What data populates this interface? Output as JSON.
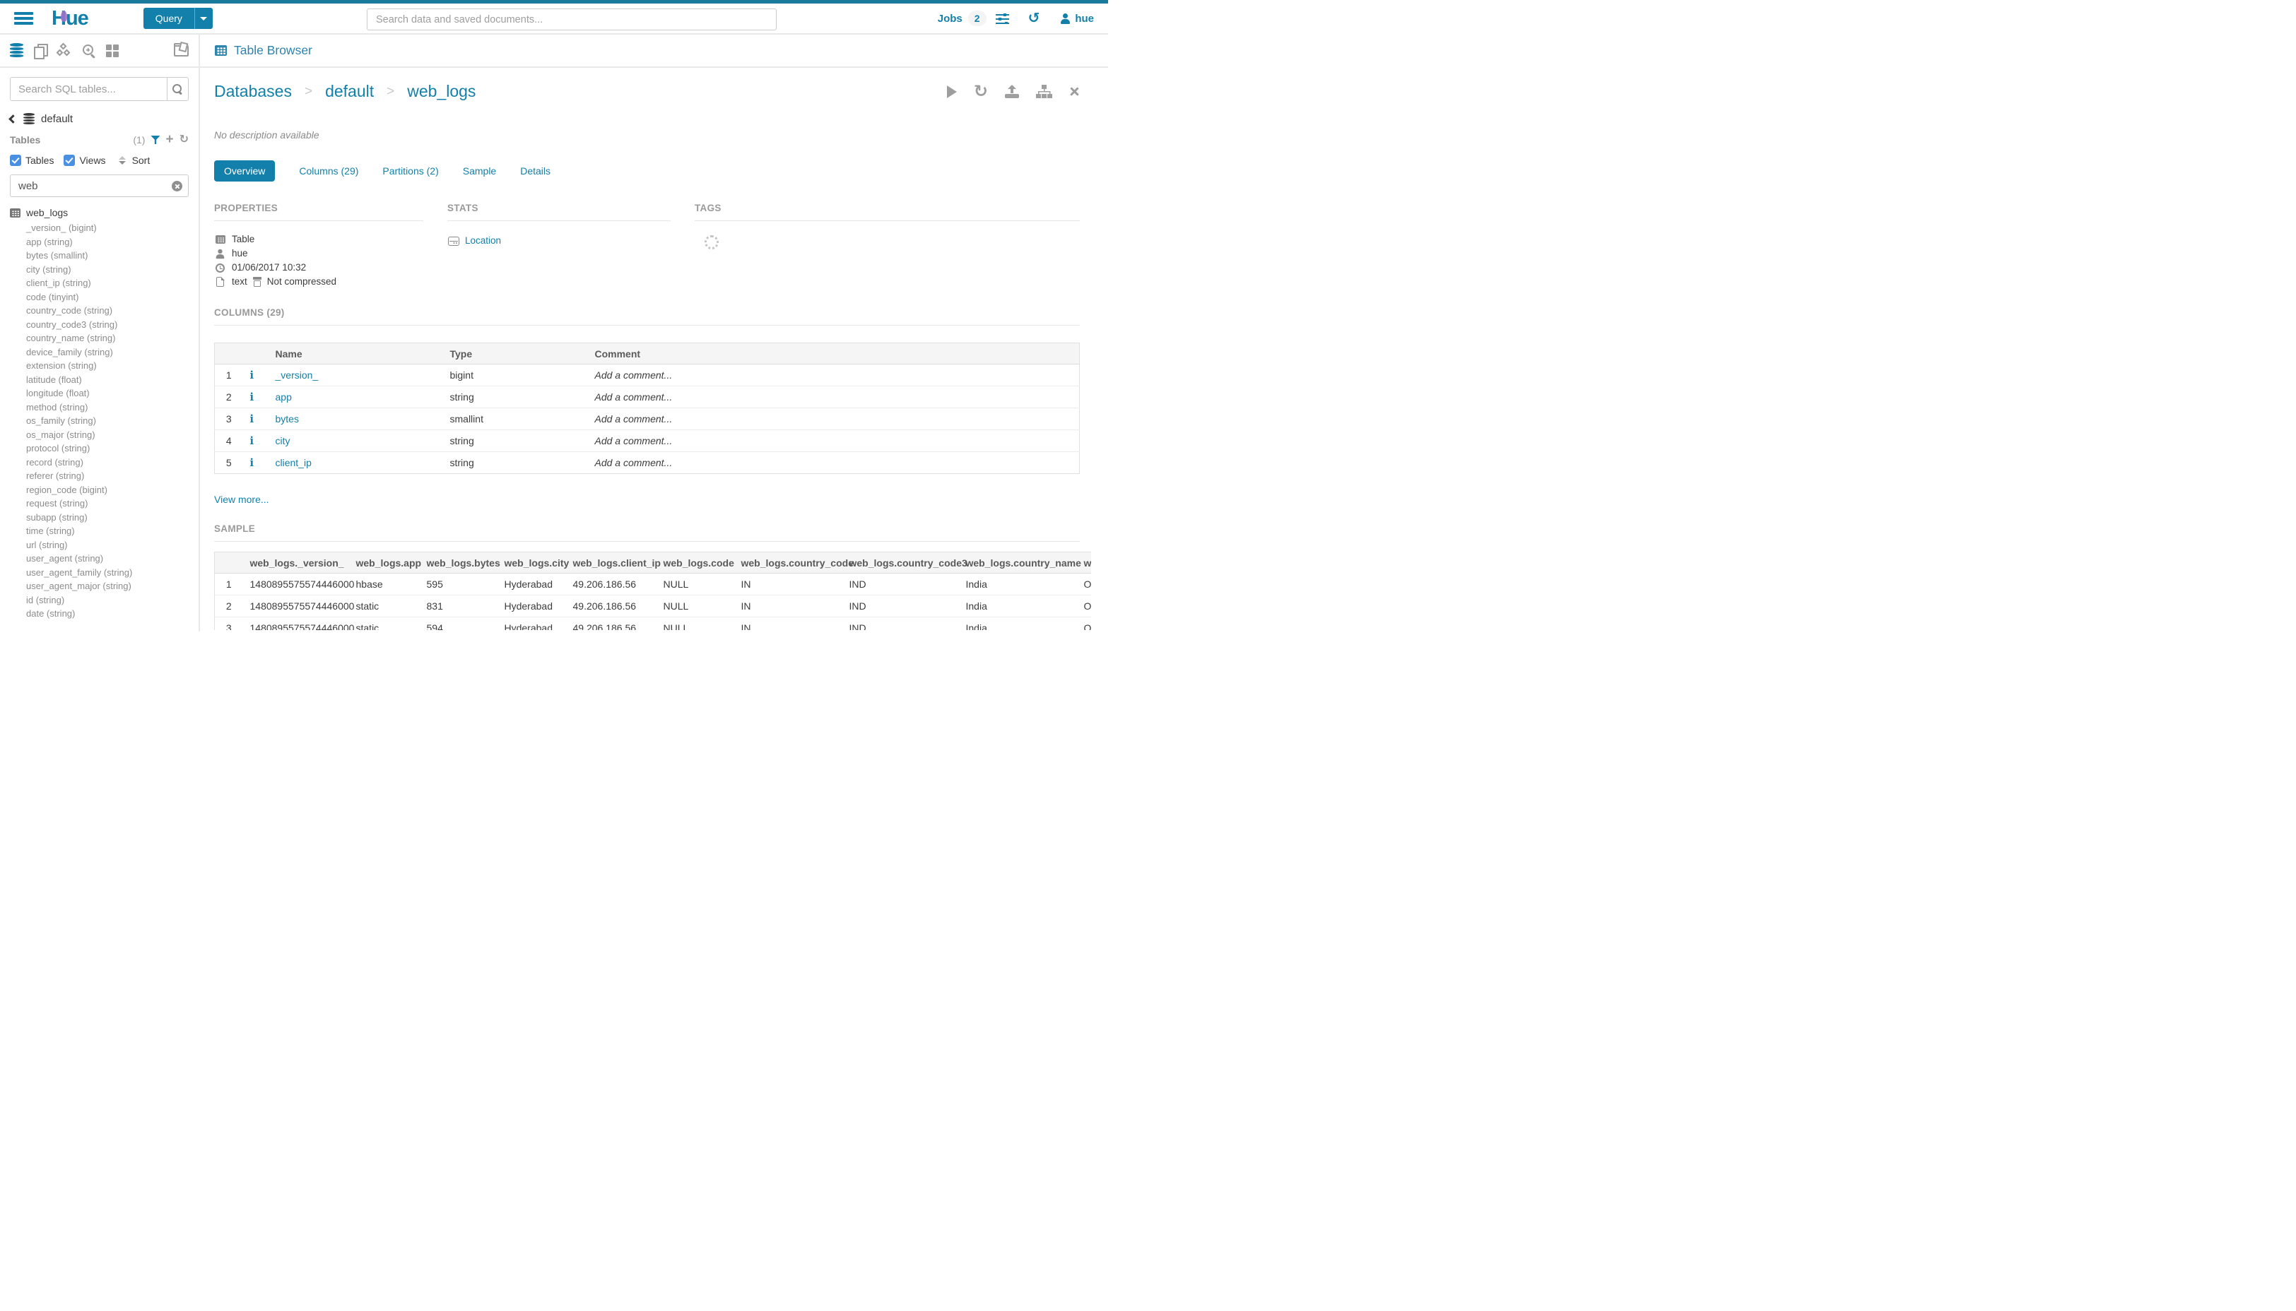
{
  "navbar": {
    "query_label": "Query",
    "search_placeholder": "Search data and saved documents...",
    "jobs_label": "Jobs",
    "jobs_count": "2",
    "user_label": "hue",
    "logo_text": "Hue",
    "brand_color": "#1280aa"
  },
  "sidebar": {
    "search_placeholder": "Search SQL tables...",
    "database_name": "default",
    "tables_label": "Tables",
    "tables_count": "(1)",
    "checkbox_tables_label": "Tables",
    "checkbox_views_label": "Views",
    "sort_label": "Sort",
    "filter_value": "web",
    "table_name": "web_logs",
    "columns": [
      "_version_ (bigint)",
      "app (string)",
      "bytes (smallint)",
      "city (string)",
      "client_ip (string)",
      "code (tinyint)",
      "country_code (string)",
      "country_code3 (string)",
      "country_name (string)",
      "device_family (string)",
      "extension (string)",
      "latitude (float)",
      "longitude (float)",
      "method (string)",
      "os_family (string)",
      "os_major (string)",
      "protocol (string)",
      "record (string)",
      "referer (string)",
      "region_code (bigint)",
      "request (string)",
      "subapp (string)",
      "time (string)",
      "url (string)",
      "user_agent (string)",
      "user_agent_family (string)",
      "user_agent_major (string)",
      "id (string)",
      "date (string)"
    ]
  },
  "main": {
    "app_title": "Table Browser",
    "breadcrumb": {
      "root": "Databases",
      "database": "default",
      "table": "web_logs",
      "separator": ">"
    },
    "description": "No description available",
    "tabs": [
      {
        "label": "Overview"
      },
      {
        "label": "Columns (29)"
      },
      {
        "label": "Partitions (2)"
      },
      {
        "label": "Sample"
      },
      {
        "label": "Details"
      }
    ],
    "properties": {
      "title": "PROPERTIES",
      "type": "Table",
      "owner": "hue",
      "created": "01/06/2017 10:32",
      "format": "text",
      "compression": "Not compressed"
    },
    "stats": {
      "title": "STATS",
      "location_label": "Location"
    },
    "tags": {
      "title": "TAGS"
    },
    "columns_section": {
      "title": "COLUMNS (29)",
      "headers": [
        "Name",
        "Type",
        "Comment"
      ],
      "comment_placeholder": "Add a comment...",
      "rows": [
        {
          "num": "1",
          "name": "_version_",
          "type": "bigint"
        },
        {
          "num": "2",
          "name": "app",
          "type": "string"
        },
        {
          "num": "3",
          "name": "bytes",
          "type": "smallint"
        },
        {
          "num": "4",
          "name": "city",
          "type": "string"
        },
        {
          "num": "5",
          "name": "client_ip",
          "type": "string"
        }
      ],
      "view_more": "View more..."
    },
    "sample_section": {
      "title": "SAMPLE",
      "headers": [
        "",
        "web_logs._version_",
        "web_logs.app",
        "web_logs.bytes",
        "web_logs.city",
        "web_logs.client_ip",
        "web_logs.code",
        "web_logs.country_code",
        "web_logs.country_code3",
        "web_logs.country_name",
        "w"
      ],
      "rows": [
        [
          "1",
          "1480895575574446000",
          "hbase",
          "595",
          "Hyderabad",
          "49.206.186.56",
          "NULL",
          "IN",
          "IND",
          "India",
          "O"
        ],
        [
          "2",
          "1480895575574446000",
          "static",
          "831",
          "Hyderabad",
          "49.206.186.56",
          "NULL",
          "IN",
          "IND",
          "India",
          "O"
        ],
        [
          "3",
          "1480895575574446000",
          "static",
          "594",
          "Hyderabad",
          "49.206.186.56",
          "NULL",
          "IN",
          "IND",
          "India",
          "O"
        ]
      ]
    }
  }
}
